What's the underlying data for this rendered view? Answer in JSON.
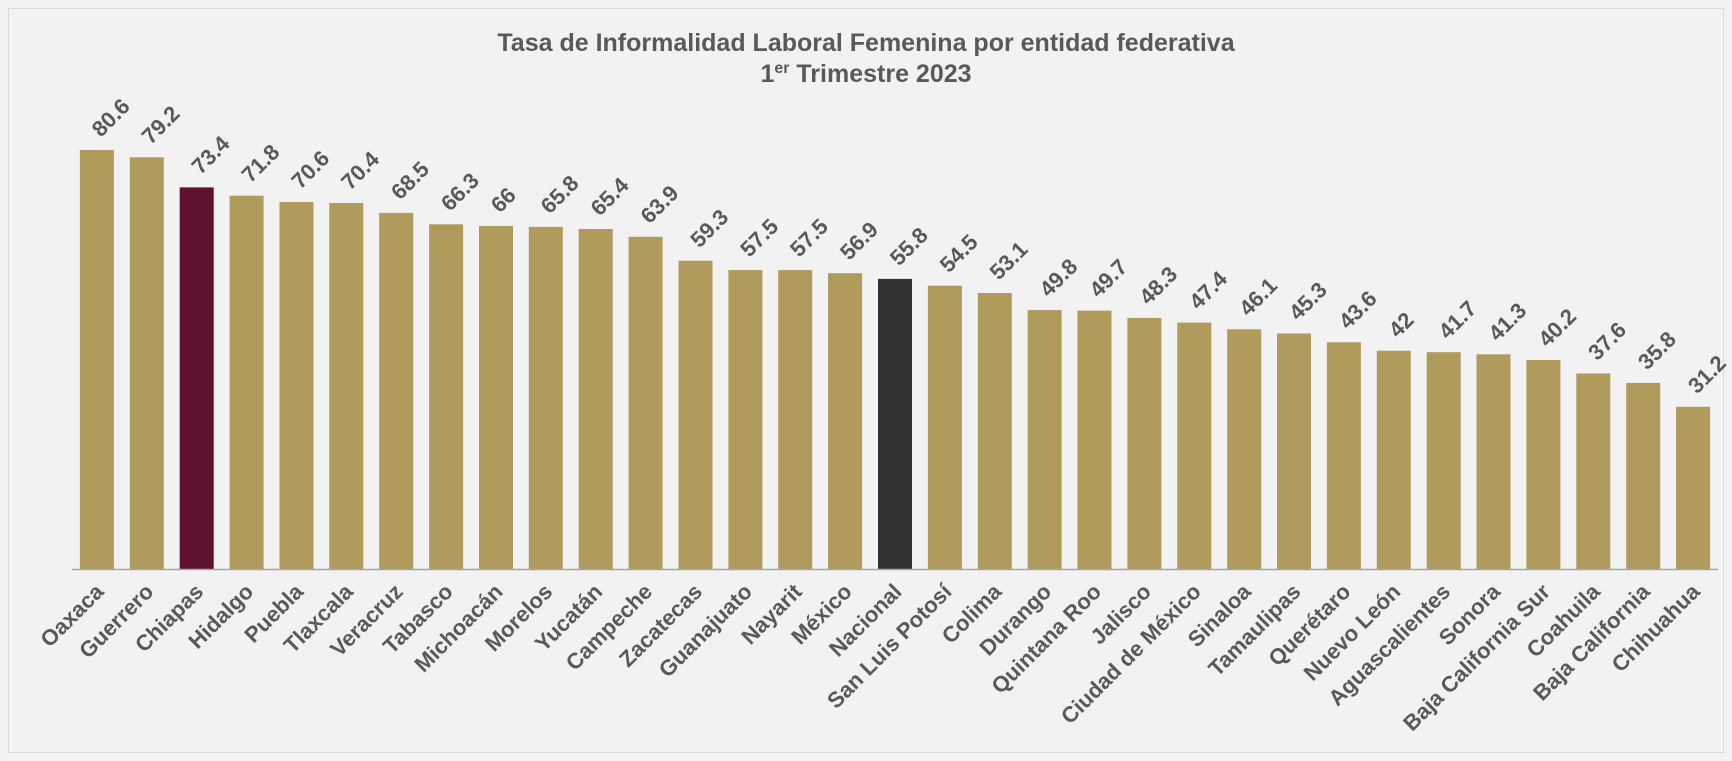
{
  "chart_data": {
    "type": "bar",
    "title": "Tasa de Informalidad Laboral Femenina por entidad federativa",
    "subtitle": {
      "prefix": "1",
      "superscript": "er",
      "suffix": " Trimestre 2023"
    },
    "categories": [
      "Oaxaca",
      "Guerrero",
      "Chiapas",
      "Hidalgo",
      "Puebla",
      "Tlaxcala",
      "Veracruz",
      "Tabasco",
      "Michoacán",
      "Morelos",
      "Yucatán",
      "Campeche",
      "Zacatecas",
      "Guanajuato",
      "Nayarit",
      "México",
      "Nacional",
      "San Luis Potosí",
      "Colima",
      "Durango",
      "Quintana Roo",
      "Jalisco",
      "Ciudad de México",
      "Sinaloa",
      "Tamaulipas",
      "Querétaro",
      "Nuevo León",
      "Aguascalientes",
      "Sonora",
      "Baja California Sur",
      "Coahuila",
      "Baja California",
      "Chihuahua"
    ],
    "values": [
      80.6,
      79.2,
      73.4,
      71.8,
      70.6,
      70.4,
      68.5,
      66.3,
      66,
      65.8,
      65.4,
      63.9,
      59.3,
      57.5,
      57.5,
      56.9,
      55.8,
      54.5,
      53.1,
      49.8,
      49.7,
      48.3,
      47.4,
      46.1,
      45.3,
      43.6,
      42,
      41.7,
      41.3,
      40.2,
      37.6,
      35.8,
      31.2
    ],
    "ylim": [
      0,
      80.6
    ],
    "grid": false,
    "legend": "none",
    "colors": {
      "default": "#b09a5c",
      "highlight": "#5e1130",
      "national": "#333333",
      "axis": "#a6a6a6",
      "text": "#595959"
    },
    "highlighted_categories": {
      "Chiapas": "highlight",
      "Nacional": "national"
    }
  }
}
